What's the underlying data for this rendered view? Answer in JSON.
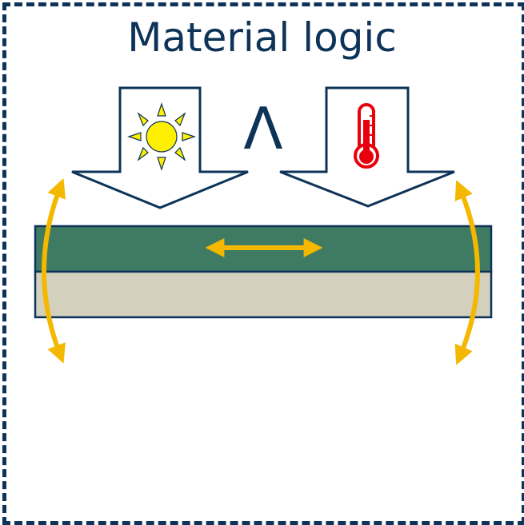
{
  "title": "Material logic",
  "operator_symbol": "Λ",
  "icons": {
    "left_input": "sun-icon",
    "right_input": "thermometer-icon"
  },
  "colors": {
    "frame": "#0d3358",
    "top_layer": "#3f7a63",
    "bottom_layer": "#d3d1bd",
    "arrow_outline": "#0d3358",
    "deformation_arrows": "#f4b800",
    "sun": "#ffef00",
    "thermometer": "#e8000d"
  }
}
